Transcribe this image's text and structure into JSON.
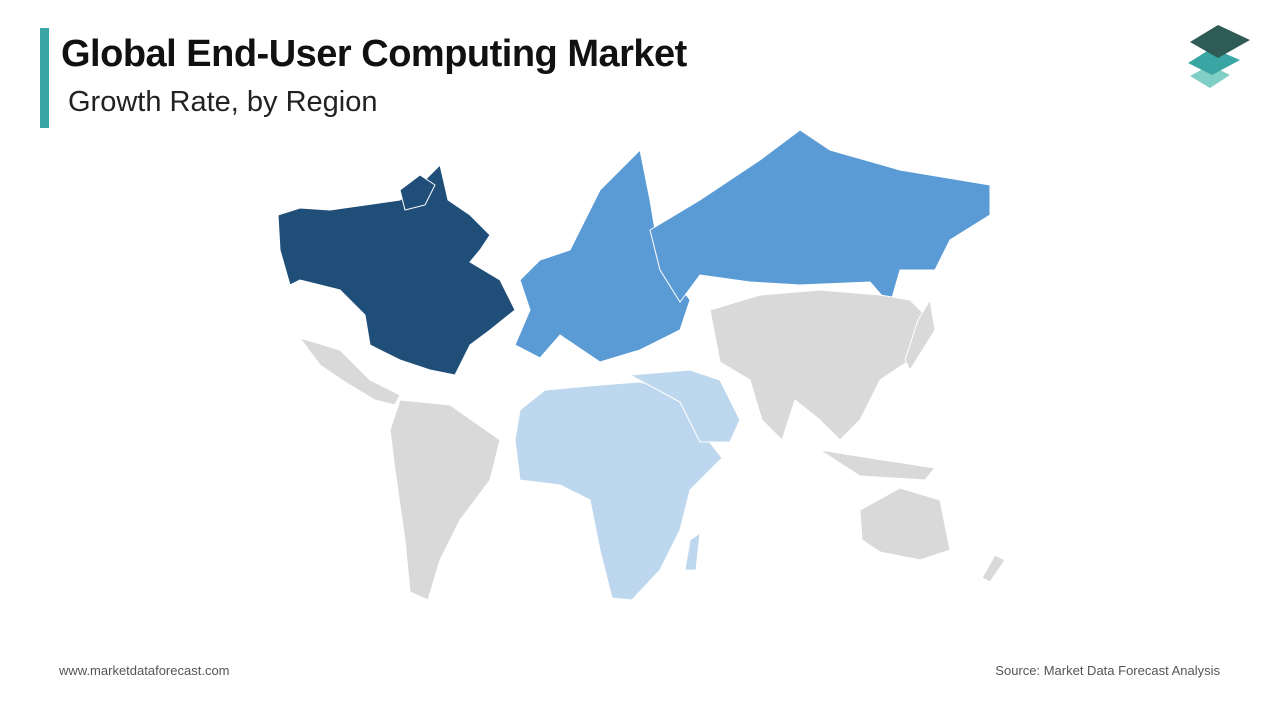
{
  "header": {
    "title": "Global End-User Computing Market",
    "subtitle": "Growth Rate, by Region"
  },
  "footer": {
    "website": "www.marketdataforecast.com",
    "source": "Source: Market Data Forecast Analysis"
  }
}
